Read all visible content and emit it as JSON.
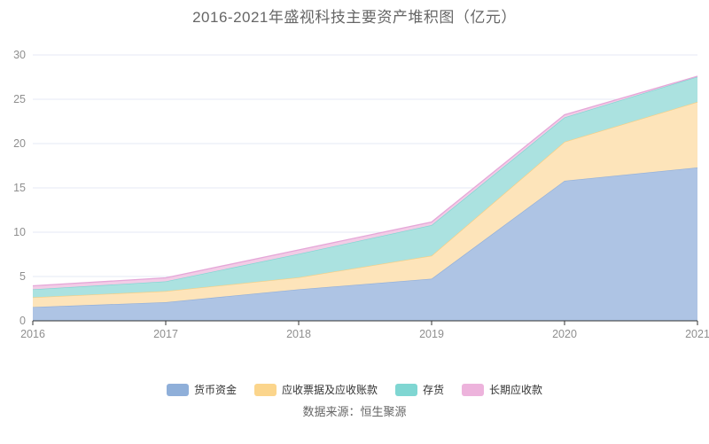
{
  "title": "2016-2021年盛视科技主要资产堆积图（亿元）",
  "source_note": "数据来源：恒生聚源",
  "legend": {
    "items": [
      {
        "label": "货币资金",
        "color": "#8FAFD9"
      },
      {
        "label": "应收票据及应收账款",
        "color": "#FBD58C"
      },
      {
        "label": "存货",
        "color": "#7FD6D2"
      },
      {
        "label": "长期应收款",
        "color": "#EDB3DC"
      }
    ]
  },
  "chart_data": {
    "type": "area",
    "stacked": true,
    "title": "2016-2021年盛视科技主要资产堆积图（亿元）",
    "x": [
      "2016",
      "2017",
      "2018",
      "2019",
      "2020",
      "2021"
    ],
    "xlabel": "",
    "ylabel": "",
    "ylim": [
      0,
      30
    ],
    "yticks": [
      0,
      5,
      10,
      15,
      20,
      25,
      30
    ],
    "grid": true,
    "legend_position": "bottom",
    "series": [
      {
        "name": "货币资金",
        "values": [
          1.55,
          2.1,
          3.55,
          4.75,
          15.8,
          17.3
        ],
        "line_color": "#91AFDA",
        "fill_color": "#AEC4E4"
      },
      {
        "name": "应收票据及应收账款",
        "values": [
          1.1,
          1.25,
          1.35,
          2.6,
          4.4,
          7.4
        ],
        "line_color": "#F7CE82",
        "fill_color": "#FDE4BA"
      },
      {
        "name": "存货",
        "values": [
          0.9,
          1.1,
          2.65,
          3.45,
          2.75,
          2.85
        ],
        "line_color": "#7FD6D2",
        "fill_color": "#ABE2E0"
      },
      {
        "name": "长期应收款",
        "values": [
          0.4,
          0.4,
          0.45,
          0.35,
          0.3,
          0.05
        ],
        "line_color": "#E5A7D8",
        "fill_color": "#F2CCE6"
      }
    ],
    "colors": {
      "grid_line": "#E4E9F4",
      "axis_line": "#333333",
      "axis_label": "#8F8F8F"
    }
  }
}
